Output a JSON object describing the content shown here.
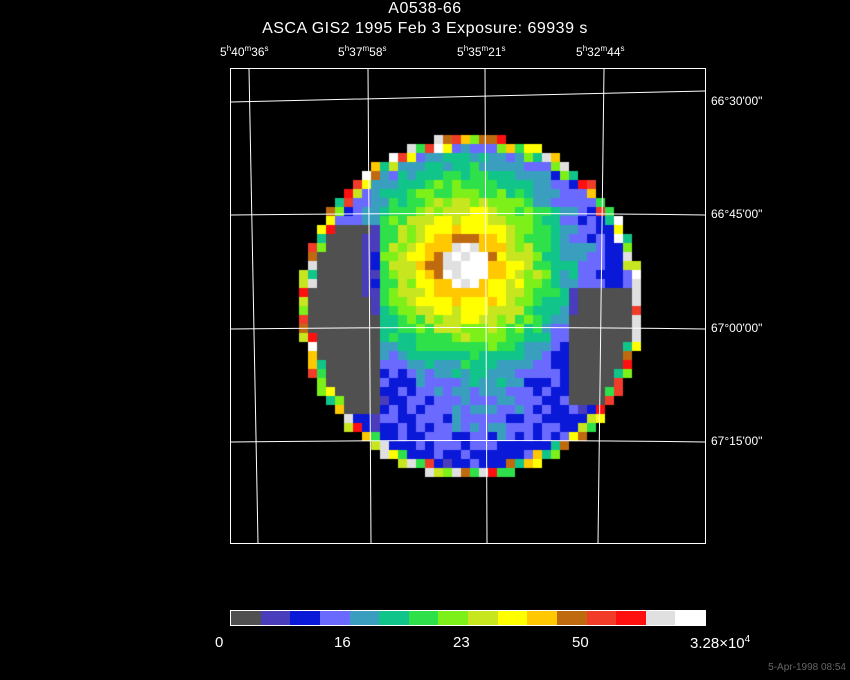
{
  "title": "A0538-66",
  "subtitle": "ASCA GIS2   1995 Feb  3    Exposure: 69939 s",
  "ra_labels": [
    {
      "h": "5",
      "m": "40",
      "s": "36"
    },
    {
      "h": "5",
      "m": "37",
      "s": "58"
    },
    {
      "h": "5",
      "m": "35",
      "s": "21"
    },
    {
      "h": "5",
      "m": "32",
      "s": "44"
    }
  ],
  "dec_labels": [
    "66°30'00\"",
    "66°45'00\"",
    "67°00'00\"",
    "67°15'00\""
  ],
  "colorbar": {
    "labels": [
      "0",
      "16",
      "23",
      "50"
    ],
    "max_label_base": "3.28×10",
    "max_label_exp": "4",
    "colors": [
      "#505050",
      "#4a3dbb",
      "#0a18d8",
      "#6a6aff",
      "#3a9fbf",
      "#11c48a",
      "#2ee04a",
      "#7df01a",
      "#c8e620",
      "#ffff00",
      "#ffc800",
      "#c06a10",
      "#f03c28",
      "#ff1010",
      "#e0e0e0",
      "#ffffff"
    ]
  },
  "timestamp": "5-Apr-1998 08:54"
}
